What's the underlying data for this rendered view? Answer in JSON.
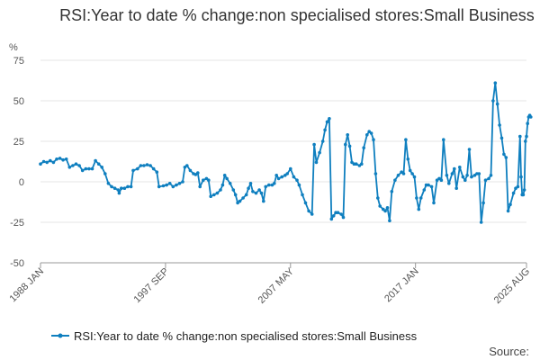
{
  "chart_data": {
    "type": "line",
    "title": "RSI:Year to date % change:non specialised stores:Small Business",
    "ylabel": "%",
    "ylim": [
      -50,
      75
    ],
    "yticks": [
      75,
      50,
      25,
      0,
      -25,
      -50
    ],
    "xlim": [
      "1988-01",
      "2025-08"
    ],
    "xticks": [
      {
        "label": "1988 JAN",
        "x": "1988-01"
      },
      {
        "label": "1997 SEP",
        "x": "1997-09"
      },
      {
        "label": "2007 MAY",
        "x": "2007-05"
      },
      {
        "label": "2017 JAN",
        "x": "2017-01"
      },
      {
        "label": "2025 AUG",
        "x": "2025-08"
      }
    ],
    "grid": "horizontal",
    "legend_position": "bottom",
    "colors": {
      "series": "#0f7fbf",
      "grid": "#e6e6e6",
      "axis": "#999999"
    },
    "series": [
      {
        "name": "RSI:Year to date % change:non specialised stores:Small Business",
        "points": [
          [
            "1988-01",
            11
          ],
          [
            "1988-04",
            12.5
          ],
          [
            "1988-07",
            12
          ],
          [
            "1988-10",
            13
          ],
          [
            "1989-01",
            12
          ],
          [
            "1989-04",
            14
          ],
          [
            "1989-07",
            14.5
          ],
          [
            "1989-10",
            13.5
          ],
          [
            "1990-01",
            14
          ],
          [
            "1990-04",
            9
          ],
          [
            "1990-07",
            10
          ],
          [
            "1990-10",
            11
          ],
          [
            "1991-01",
            10
          ],
          [
            "1991-04",
            7
          ],
          [
            "1991-07",
            8
          ],
          [
            "1991-10",
            8
          ],
          [
            "1992-01",
            8
          ],
          [
            "1992-04",
            13
          ],
          [
            "1992-07",
            11
          ],
          [
            "1992-10",
            9
          ],
          [
            "1993-01",
            5
          ],
          [
            "1993-04",
            -1
          ],
          [
            "1993-07",
            -3
          ],
          [
            "1993-10",
            -4
          ],
          [
            "1994-01",
            -5
          ],
          [
            "1994-02",
            -7
          ],
          [
            "1994-04",
            -4
          ],
          [
            "1994-07",
            -4
          ],
          [
            "1994-10",
            -3
          ],
          [
            "1995-01",
            -3
          ],
          [
            "1995-03",
            7
          ],
          [
            "1995-07",
            8
          ],
          [
            "1995-10",
            10
          ],
          [
            "1996-01",
            10
          ],
          [
            "1996-04",
            10.5
          ],
          [
            "1996-07",
            10
          ],
          [
            "1996-10",
            8
          ],
          [
            "1997-01",
            6
          ],
          [
            "1997-03",
            -3
          ],
          [
            "1997-07",
            -2.5
          ],
          [
            "1997-10",
            -2
          ],
          [
            "1998-01",
            -1
          ],
          [
            "1998-04",
            -3
          ],
          [
            "1998-07",
            -2
          ],
          [
            "1998-10",
            -1
          ],
          [
            "1999-01",
            0
          ],
          [
            "1999-03",
            9
          ],
          [
            "1999-05",
            10
          ],
          [
            "1999-08",
            7
          ],
          [
            "1999-11",
            5
          ],
          [
            "2000-01",
            4.5
          ],
          [
            "2000-03",
            5.5
          ],
          [
            "2000-05",
            -3
          ],
          [
            "2000-08",
            1
          ],
          [
            "2000-11",
            2
          ],
          [
            "2001-01",
            1
          ],
          [
            "2001-03",
            -9
          ],
          [
            "2001-06",
            -8
          ],
          [
            "2001-09",
            -7
          ],
          [
            "2001-12",
            -5
          ],
          [
            "2002-02",
            -2
          ],
          [
            "2002-04",
            4
          ],
          [
            "2002-06",
            2
          ],
          [
            "2002-09",
            -1
          ],
          [
            "2002-12",
            -5
          ],
          [
            "2003-02",
            -8
          ],
          [
            "2003-04",
            -13
          ],
          [
            "2003-06",
            -12
          ],
          [
            "2003-09",
            -10
          ],
          [
            "2003-12",
            -8
          ],
          [
            "2004-02",
            -4
          ],
          [
            "2004-04",
            -1
          ],
          [
            "2004-06",
            -6
          ],
          [
            "2004-09",
            -7
          ],
          [
            "2004-12",
            -5
          ],
          [
            "2005-02",
            -7
          ],
          [
            "2005-04",
            -12
          ],
          [
            "2005-06",
            -3
          ],
          [
            "2005-09",
            -2
          ],
          [
            "2005-12",
            -2
          ],
          [
            "2006-02",
            -1
          ],
          [
            "2006-04",
            4
          ],
          [
            "2006-06",
            2
          ],
          [
            "2006-09",
            3
          ],
          [
            "2006-12",
            4
          ],
          [
            "2007-02",
            5
          ],
          [
            "2007-05",
            8
          ],
          [
            "2007-08",
            3
          ],
          [
            "2007-11",
            1
          ],
          [
            "2008-01",
            -2
          ],
          [
            "2008-04",
            -8
          ],
          [
            "2008-07",
            -13
          ],
          [
            "2008-10",
            -18
          ],
          [
            "2009-01",
            -20
          ],
          [
            "2009-03",
            23
          ],
          [
            "2009-05",
            12
          ],
          [
            "2009-08",
            18
          ],
          [
            "2009-11",
            25
          ],
          [
            "2010-01",
            32
          ],
          [
            "2010-03",
            37
          ],
          [
            "2010-05",
            39
          ],
          [
            "2010-07",
            -23
          ],
          [
            "2010-09",
            -21
          ],
          [
            "2010-11",
            -19
          ],
          [
            "2011-01",
            -19
          ],
          [
            "2011-04",
            -20
          ],
          [
            "2011-06",
            -22
          ],
          [
            "2011-08",
            23
          ],
          [
            "2011-10",
            29
          ],
          [
            "2011-12",
            22
          ],
          [
            "2012-02",
            12
          ],
          [
            "2012-04",
            11
          ],
          [
            "2012-06",
            11
          ],
          [
            "2012-09",
            10
          ],
          [
            "2012-11",
            11
          ],
          [
            "2013-01",
            21
          ],
          [
            "2013-04",
            29
          ],
          [
            "2013-06",
            31
          ],
          [
            "2013-08",
            30
          ],
          [
            "2013-10",
            26
          ],
          [
            "2013-12",
            5
          ],
          [
            "2014-02",
            -10
          ],
          [
            "2014-04",
            -15
          ],
          [
            "2014-07",
            -17
          ],
          [
            "2014-09",
            -18
          ],
          [
            "2014-11",
            -16
          ],
          [
            "2015-01",
            -24
          ],
          [
            "2015-03",
            -6
          ],
          [
            "2015-06",
            1
          ],
          [
            "2015-09",
            4
          ],
          [
            "2015-12",
            6
          ],
          [
            "2016-02",
            5
          ],
          [
            "2016-04",
            26
          ],
          [
            "2016-06",
            14
          ],
          [
            "2016-08",
            7
          ],
          [
            "2016-10",
            5
          ],
          [
            "2016-12",
            3
          ],
          [
            "2017-02",
            -10
          ],
          [
            "2017-04",
            -17
          ],
          [
            "2017-06",
            -10
          ],
          [
            "2017-09",
            -5
          ],
          [
            "2017-11",
            -2
          ],
          [
            "2018-01",
            -2
          ],
          [
            "2018-04",
            -3
          ],
          [
            "2018-06",
            -13
          ],
          [
            "2018-09",
            1
          ],
          [
            "2018-11",
            2
          ],
          [
            "2019-01",
            1
          ],
          [
            "2019-03",
            26
          ],
          [
            "2019-06",
            4
          ],
          [
            "2019-08",
            -1
          ],
          [
            "2019-11",
            5
          ],
          [
            "2020-01",
            8
          ],
          [
            "2020-03",
            -4
          ],
          [
            "2020-06",
            9
          ],
          [
            "2020-09",
            3
          ],
          [
            "2020-11",
            1
          ],
          [
            "2021-01",
            4
          ],
          [
            "2021-03",
            20
          ],
          [
            "2021-05",
            3
          ],
          [
            "2021-08",
            4
          ],
          [
            "2021-10",
            5
          ],
          [
            "2021-12",
            5
          ],
          [
            "2022-02",
            -25
          ],
          [
            "2022-04",
            -13
          ],
          [
            "2022-06",
            1
          ],
          [
            "2022-09",
            2
          ],
          [
            "2022-11",
            4
          ],
          [
            "2023-01",
            50
          ],
          [
            "2023-03",
            61
          ],
          [
            "2023-05",
            48
          ],
          [
            "2023-07",
            35
          ],
          [
            "2023-09",
            27
          ],
          [
            "2023-11",
            17
          ],
          [
            "2024-01",
            15
          ],
          [
            "2024-03",
            -18
          ],
          [
            "2024-05",
            -14
          ],
          [
            "2024-08",
            -7
          ],
          [
            "2024-10",
            -4
          ],
          [
            "2024-12",
            -3
          ],
          [
            "2025-02",
            28
          ],
          [
            "2025-03",
            3
          ],
          [
            "2025-04",
            -8
          ],
          [
            "2025-05",
            -8
          ],
          [
            "2025-06",
            -5
          ],
          [
            "2025-07",
            25
          ],
          [
            "2025-08",
            28
          ],
          [
            "2025-09",
            36
          ],
          [
            "2025-10",
            40
          ],
          [
            "2025-11",
            41
          ],
          [
            "2025-12",
            40
          ]
        ]
      }
    ],
    "source_label": "Source:"
  }
}
